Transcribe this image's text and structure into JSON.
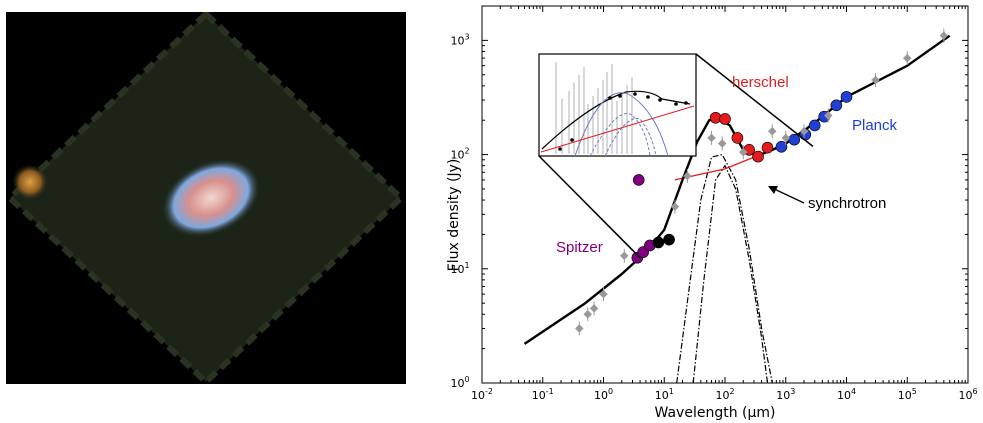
{
  "image_panel": {
    "kind": "infrared-sky-image",
    "colors": {
      "background": "#000000",
      "field": "#1c2418",
      "nebula": "#e8c7c7",
      "nebula_edge": "#7fa8e0",
      "left_source": "#c47a28"
    }
  },
  "chart_data": {
    "type": "scatter",
    "xlabel": "Wavelength (μm)",
    "ylabel": "Flux density (Jy)",
    "xscale": "log",
    "yscale": "log",
    "xlim": [
      0.01,
      1000000
    ],
    "ylim": [
      1,
      2000
    ],
    "x_ticks": [
      {
        "value": 0.01,
        "base": "10",
        "exp": "-2"
      },
      {
        "value": 0.1,
        "base": "10",
        "exp": "-1"
      },
      {
        "value": 1,
        "base": "10",
        "exp": "0"
      },
      {
        "value": 10,
        "base": "10",
        "exp": "1"
      },
      {
        "value": 100,
        "base": "10",
        "exp": "2"
      },
      {
        "value": 1000,
        "base": "10",
        "exp": "3"
      },
      {
        "value": 10000,
        "base": "10",
        "exp": "4"
      },
      {
        "value": 100000,
        "base": "10",
        "exp": "5"
      },
      {
        "value": 1000000,
        "base": "10",
        "exp": "6"
      }
    ],
    "y_ticks": [
      {
        "value": 1,
        "base": "10",
        "exp": "0"
      },
      {
        "value": 10,
        "base": "10",
        "exp": "1"
      },
      {
        "value": 100,
        "base": "10",
        "exp": "2"
      },
      {
        "value": 1000,
        "base": "10",
        "exp": "3"
      }
    ],
    "series": [
      {
        "name": "Spitzer",
        "color": "#800080",
        "points": [
          [
            3.6,
            12.5
          ],
          [
            4.5,
            14
          ],
          [
            5.8,
            16
          ],
          [
            3.8,
            60
          ]
        ]
      },
      {
        "color": "#000000",
        "points": [
          [
            8,
            17
          ],
          [
            12,
            18
          ]
        ]
      },
      {
        "name": "herschel",
        "color": "#e41a1c",
        "points": [
          [
            70,
            210
          ],
          [
            100,
            205
          ],
          [
            160,
            140
          ],
          [
            250,
            110
          ],
          [
            350,
            96
          ],
          [
            500,
            115
          ]
        ]
      },
      {
        "name": "Planck",
        "color": "#1f3fd6",
        "points": [
          [
            850,
            117
          ],
          [
            1380,
            135
          ],
          [
            2100,
            150
          ],
          [
            3000,
            180
          ],
          [
            4300,
            215
          ],
          [
            6800,
            270
          ],
          [
            10000,
            320
          ]
        ]
      },
      {
        "color": "#999999",
        "points": [
          [
            0.4,
            3
          ],
          [
            0.55,
            4
          ],
          [
            0.7,
            4.5
          ],
          [
            1.0,
            6
          ],
          [
            2.2,
            13
          ],
          [
            15,
            35
          ],
          [
            24,
            65
          ],
          [
            60,
            140
          ],
          [
            90,
            125
          ],
          [
            200,
            105
          ],
          [
            600,
            160
          ],
          [
            1000,
            140
          ],
          [
            2000,
            160
          ],
          [
            5000,
            220
          ],
          [
            30000,
            450
          ],
          [
            100000,
            700
          ],
          [
            400000,
            1100
          ]
        ]
      }
    ],
    "model_total": [
      [
        0.05,
        2.2
      ],
      [
        0.5,
        5
      ],
      [
        2,
        9
      ],
      [
        5,
        14
      ],
      [
        10,
        22
      ],
      [
        20,
        60
      ],
      [
        35,
        130
      ],
      [
        55,
        200
      ],
      [
        80,
        205
      ],
      [
        120,
        180
      ],
      [
        200,
        110
      ],
      [
        350,
        98
      ],
      [
        600,
        110
      ],
      [
        1000,
        125
      ],
      [
        3000,
        190
      ],
      [
        10000,
        320
      ],
      [
        100000,
        600
      ],
      [
        500000,
        1100
      ]
    ],
    "model_synchrotron": [
      [
        15,
        60
      ],
      [
        100,
        75
      ],
      [
        300,
        95
      ],
      [
        1000,
        125
      ]
    ],
    "model_dust_components": [
      [
        [
          16,
          1
        ],
        [
          25,
          6
        ],
        [
          40,
          40
        ],
        [
          60,
          95
        ],
        [
          90,
          100
        ],
        [
          150,
          60
        ],
        [
          250,
          15
        ],
        [
          400,
          3
        ],
        [
          600,
          1
        ]
      ],
      [
        [
          30,
          1
        ],
        [
          45,
          8
        ],
        [
          70,
          60
        ],
        [
          100,
          80
        ],
        [
          150,
          50
        ],
        [
          250,
          12
        ],
        [
          400,
          2.5
        ],
        [
          500,
          1
        ]
      ]
    ],
    "annotations": {
      "herschel": "herschel",
      "planck": "Planck",
      "spitzer": "Spitzer",
      "synchrotron": "synchrotron"
    },
    "colors": {
      "total": "#000000",
      "synchrotron": "#e41a1c",
      "dust": "#000000",
      "inset_blue": "#6a7cc9"
    }
  }
}
